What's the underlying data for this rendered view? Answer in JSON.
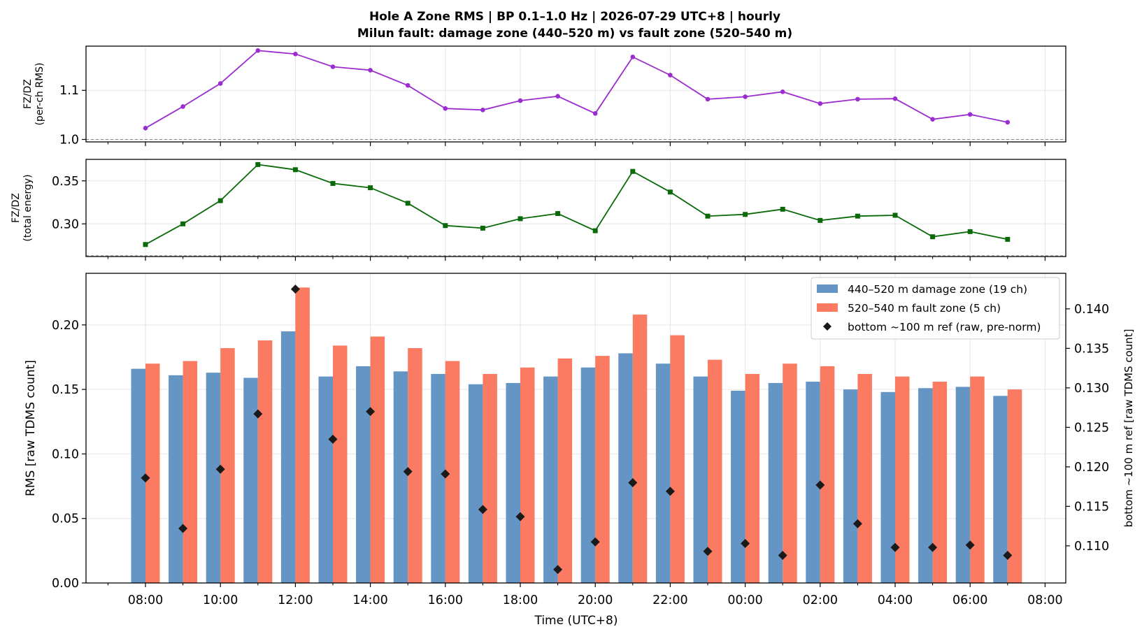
{
  "title_line1": "Hole A Zone RMS  |  BP 0.1–1.0 Hz  |  2026-07-29 UTC+8  |  hourly",
  "title_line2": "Milun fault: damage zone (440–520 m) vs fault zone (520–540 m)",
  "colors": {
    "ratio_rms": "#9b2ccf",
    "ratio_energy": "#0a6a0a",
    "damage_zone": "#6495c4",
    "fault_zone": "#fa7a62",
    "reference": "#1a1a1a",
    "grid": "#e6e6e6",
    "ref_line": "#888888"
  },
  "chart_data": [
    {
      "type": "line",
      "ylabel": [
        "FZ/DZ",
        "(per-ch RMS)"
      ],
      "ylim": [
        0.995,
        1.19
      ],
      "yticks": [
        "1.0",
        "1.1"
      ],
      "yticks_values": [
        1.0,
        1.1
      ],
      "reference_line": 1.0,
      "grid": true,
      "x_hours": [
        0,
        1,
        2,
        3,
        4,
        5,
        6,
        7,
        8,
        9,
        10,
        11,
        12,
        13,
        14,
        15,
        16,
        17,
        18,
        19,
        20,
        21,
        22,
        23
      ],
      "series": [
        {
          "marker": "circle",
          "values": [
            1.023,
            1.067,
            1.114,
            1.181,
            1.174,
            1.148,
            1.141,
            1.11,
            1.063,
            1.06,
            1.079,
            1.088,
            1.053,
            1.168,
            1.131,
            1.082,
            1.087,
            1.097,
            1.073,
            1.082,
            1.083,
            1.041,
            1.051,
            1.035
          ]
        }
      ]
    },
    {
      "type": "line",
      "ylabel": [
        "FZ/DZ",
        "(total energy)"
      ],
      "ylim": [
        0.262,
        0.375
      ],
      "yticks": [
        "0.30",
        "0.35"
      ],
      "yticks_values": [
        0.3,
        0.35
      ],
      "reference_line": 0.263,
      "grid": true,
      "x_hours": [
        0,
        1,
        2,
        3,
        4,
        5,
        6,
        7,
        8,
        9,
        10,
        11,
        12,
        13,
        14,
        15,
        16,
        17,
        18,
        19,
        20,
        21,
        22,
        23
      ],
      "series": [
        {
          "marker": "square",
          "values": [
            0.276,
            0.3,
            0.327,
            0.369,
            0.363,
            0.347,
            0.342,
            0.324,
            0.298,
            0.295,
            0.306,
            0.312,
            0.292,
            0.361,
            0.337,
            0.309,
            0.311,
            0.317,
            0.304,
            0.309,
            0.31,
            0.285,
            0.291,
            0.282
          ]
        }
      ]
    },
    {
      "type": "bar",
      "xlabel": "Time (UTC+8)",
      "ylabel": "RMS  [raw TDMS count]",
      "ylabel_right": "bottom ~100 m ref  [raw TDMS count]",
      "ylim": [
        0.0,
        0.24
      ],
      "yticks": [
        "0.00",
        "0.05",
        "0.10",
        "0.15",
        "0.20"
      ],
      "yticks_values": [
        0.0,
        0.05,
        0.1,
        0.15,
        0.2
      ],
      "ylim_right": [
        0.1053,
        0.1445
      ],
      "yticks_right": [
        "0.110",
        "0.115",
        "0.120",
        "0.125",
        "0.130",
        "0.135",
        "0.140"
      ],
      "yticks_right_values": [
        0.11,
        0.115,
        0.12,
        0.125,
        0.13,
        0.135,
        0.14
      ],
      "xticks": [
        "08:00",
        "10:00",
        "12:00",
        "14:00",
        "16:00",
        "18:00",
        "20:00",
        "22:00",
        "00:00",
        "02:00",
        "04:00",
        "06:00",
        "08:00"
      ],
      "xticks_hours": [
        0,
        2,
        4,
        6,
        8,
        10,
        12,
        14,
        16,
        18,
        20,
        22,
        24
      ],
      "x_hours": [
        0,
        1,
        2,
        3,
        4,
        5,
        6,
        7,
        8,
        9,
        10,
        11,
        12,
        13,
        14,
        15,
        16,
        17,
        18,
        19,
        20,
        21,
        22,
        23
      ],
      "grid": true,
      "legend_position": "upper right",
      "series": [
        {
          "name": "440–520 m  damage zone (19 ch)",
          "kind": "bar",
          "values": [
            0.166,
            0.161,
            0.163,
            0.159,
            0.195,
            0.16,
            0.168,
            0.164,
            0.162,
            0.154,
            0.155,
            0.16,
            0.167,
            0.178,
            0.17,
            0.16,
            0.149,
            0.155,
            0.156,
            0.15,
            0.148,
            0.151,
            0.152,
            0.145
          ]
        },
        {
          "name": "520–540 m  fault zone (5 ch)",
          "kind": "bar",
          "values": [
            0.17,
            0.172,
            0.182,
            0.188,
            0.229,
            0.184,
            0.191,
            0.182,
            0.172,
            0.162,
            0.167,
            0.174,
            0.176,
            0.208,
            0.192,
            0.173,
            0.162,
            0.17,
            0.168,
            0.162,
            0.16,
            0.156,
            0.16,
            0.15
          ]
        },
        {
          "name": "bottom ~100 m ref (raw, pre-norm)",
          "kind": "scatter",
          "axis": "right",
          "values": [
            0.1186,
            0.1122,
            0.1197,
            0.1267,
            0.1425,
            0.1235,
            0.127,
            0.1194,
            0.1191,
            0.1146,
            0.1137,
            0.107,
            0.1105,
            0.118,
            0.1169,
            0.1093,
            0.1103,
            0.1088,
            0.1177,
            0.1128,
            0.1098,
            0.1098,
            0.1101,
            0.1088
          ]
        }
      ]
    }
  ]
}
